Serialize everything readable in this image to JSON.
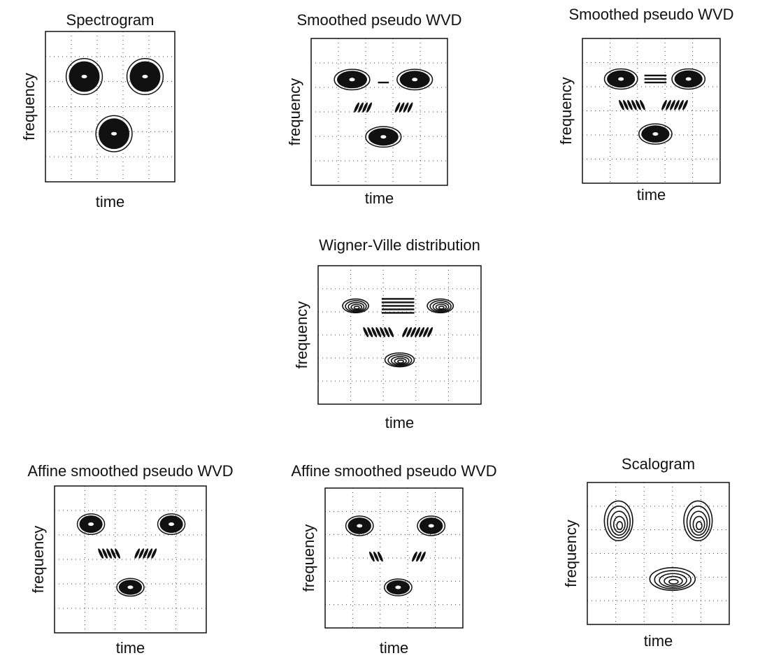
{
  "panels": [
    {
      "title": "Spectrogram",
      "xlabel": "time",
      "ylabel": "frequency"
    },
    {
      "title": "Smoothed pseudo WVD",
      "xlabel": "time",
      "ylabel": "frequency"
    },
    {
      "title": "Smoothed pseudo WVD",
      "xlabel": "time",
      "ylabel": "frequency"
    },
    {
      "title": "Wigner-Ville distribution",
      "xlabel": "time",
      "ylabel": "frequency"
    },
    {
      "title": "Affine smoothed pseudo WVD",
      "xlabel": "time",
      "ylabel": "frequency"
    },
    {
      "title": "Affine smoothed pseudo WVD",
      "xlabel": "time",
      "ylabel": "frequency"
    },
    {
      "title": "Scalogram",
      "xlabel": "time",
      "ylabel": "frequency"
    }
  ]
}
